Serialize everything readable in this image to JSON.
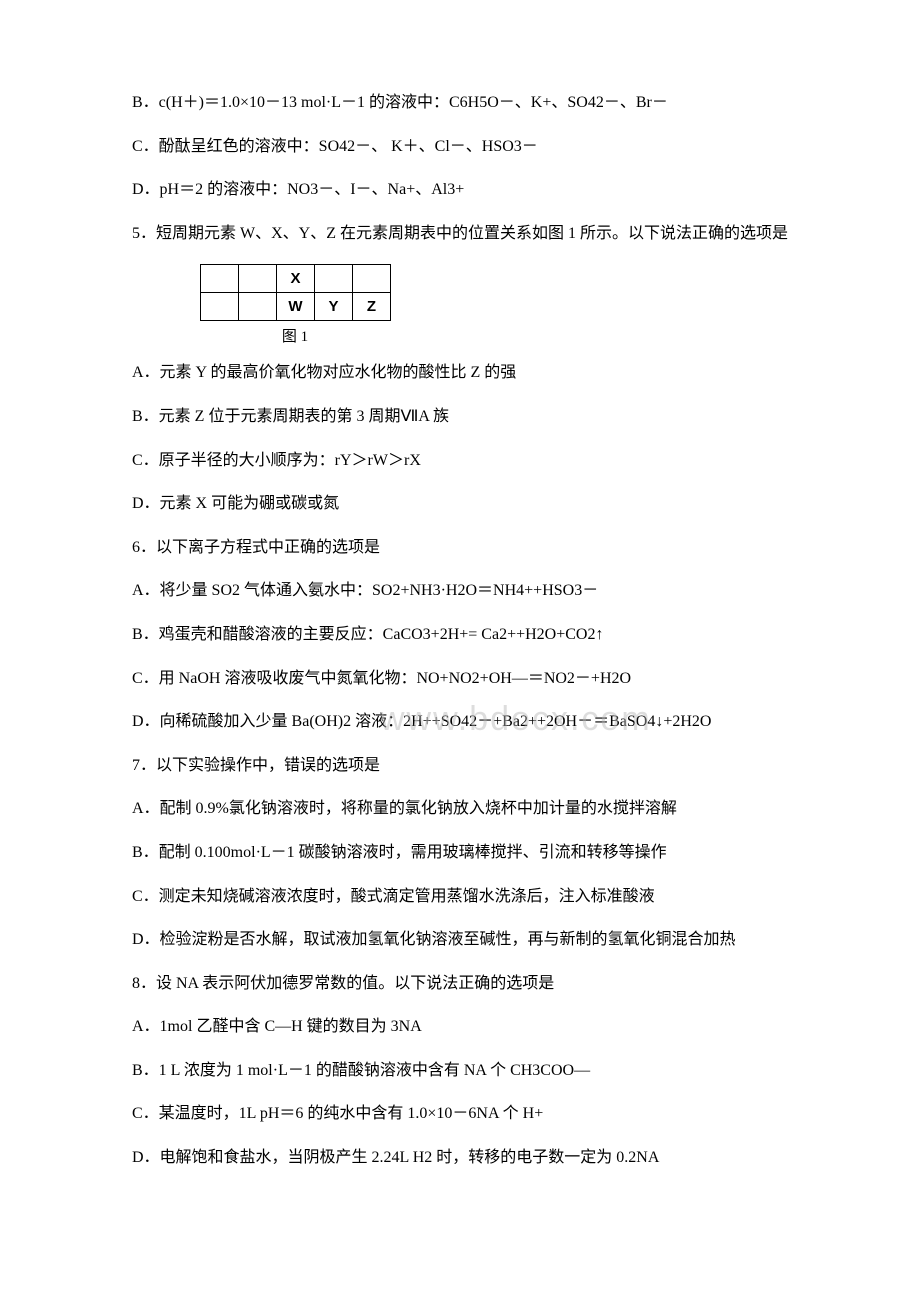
{
  "q4": {
    "B": "B．c(H＋)＝1.0×10－13 mol·L－1 的溶液中：C6H5O－、K+、SO42－、Br－",
    "C": "C．酚酞呈红色的溶液中：SO42－、 K＋、Cl－、HSO3－",
    "D": "D．pH＝2 的溶液中：NO3－、I－、Na+、Al3+"
  },
  "q5": {
    "stem": "5．短周期元素 W、X、Y、Z 在元素周期表中的位置关系如图 1 所示。以下说法正确的选项是",
    "table": {
      "r1": [
        "",
        "",
        "X",
        "",
        ""
      ],
      "r2": [
        "",
        "",
        "W",
        "Y",
        "Z"
      ]
    },
    "caption": "图 1",
    "A": "A．元素 Y 的最高价氧化物对应水化物的酸性比 Z 的强",
    "B": "B．元素 Z 位于元素周期表的第 3 周期ⅦA 族",
    "C": "C．原子半径的大小顺序为：rY＞rW＞rX",
    "D": "D．元素 X 可能为硼或碳或氮"
  },
  "q6": {
    "stem": "6．以下离子方程式中正确的选项是",
    "A": "A．将少量 SO2 气体通入氨水中：SO2+NH3·H2O＝NH4++HSO3－",
    "B": "B．鸡蛋壳和醋酸溶液的主要反应：CaCO3+2H+= Ca2++H2O+CO2↑",
    "C": "C．用 NaOH 溶液吸收废气中氮氧化物：NO+NO2+OH—＝NO2－+H2O",
    "D": "D．向稀硫酸加入少量 Ba(OH)2 溶液：2H++SO42－+Ba2++2OH－＝BaSO4↓+2H2O"
  },
  "q7": {
    "stem": "7．以下实验操作中，错误的选项是",
    "A": "A．配制 0.9%氯化钠溶液时，将称量的氯化钠放入烧杯中加计量的水搅拌溶解",
    "B": "B．配制 0.100mol·L－1 碳酸钠溶液时，需用玻璃棒搅拌、引流和转移等操作",
    "C": "C．测定未知烧碱溶液浓度时，酸式滴定管用蒸馏水洗涤后，注入标准酸液",
    "D": "D．检验淀粉是否水解，取试液加氢氧化钠溶液至碱性，再与新制的氢氧化铜混合加热"
  },
  "q8": {
    "stem": "8．设 NA 表示阿伏加德罗常数的值。以下说法正确的选项是",
    "A": "A．1mol 乙醛中含 C—H 键的数目为 3NA",
    "B": "B．1 L 浓度为 1 mol·L－1 的醋酸钠溶液中含有 NA 个 CH3COO—",
    "C": "C．某温度时，1L pH＝6 的纯水中含有 1.0×10－6NA 个 H+",
    "D": "D．电解饱和食盐水，当阴极产生 2.24L H2 时，转移的电子数一定为 0.2NA"
  },
  "watermark": "www.bdocx.com"
}
